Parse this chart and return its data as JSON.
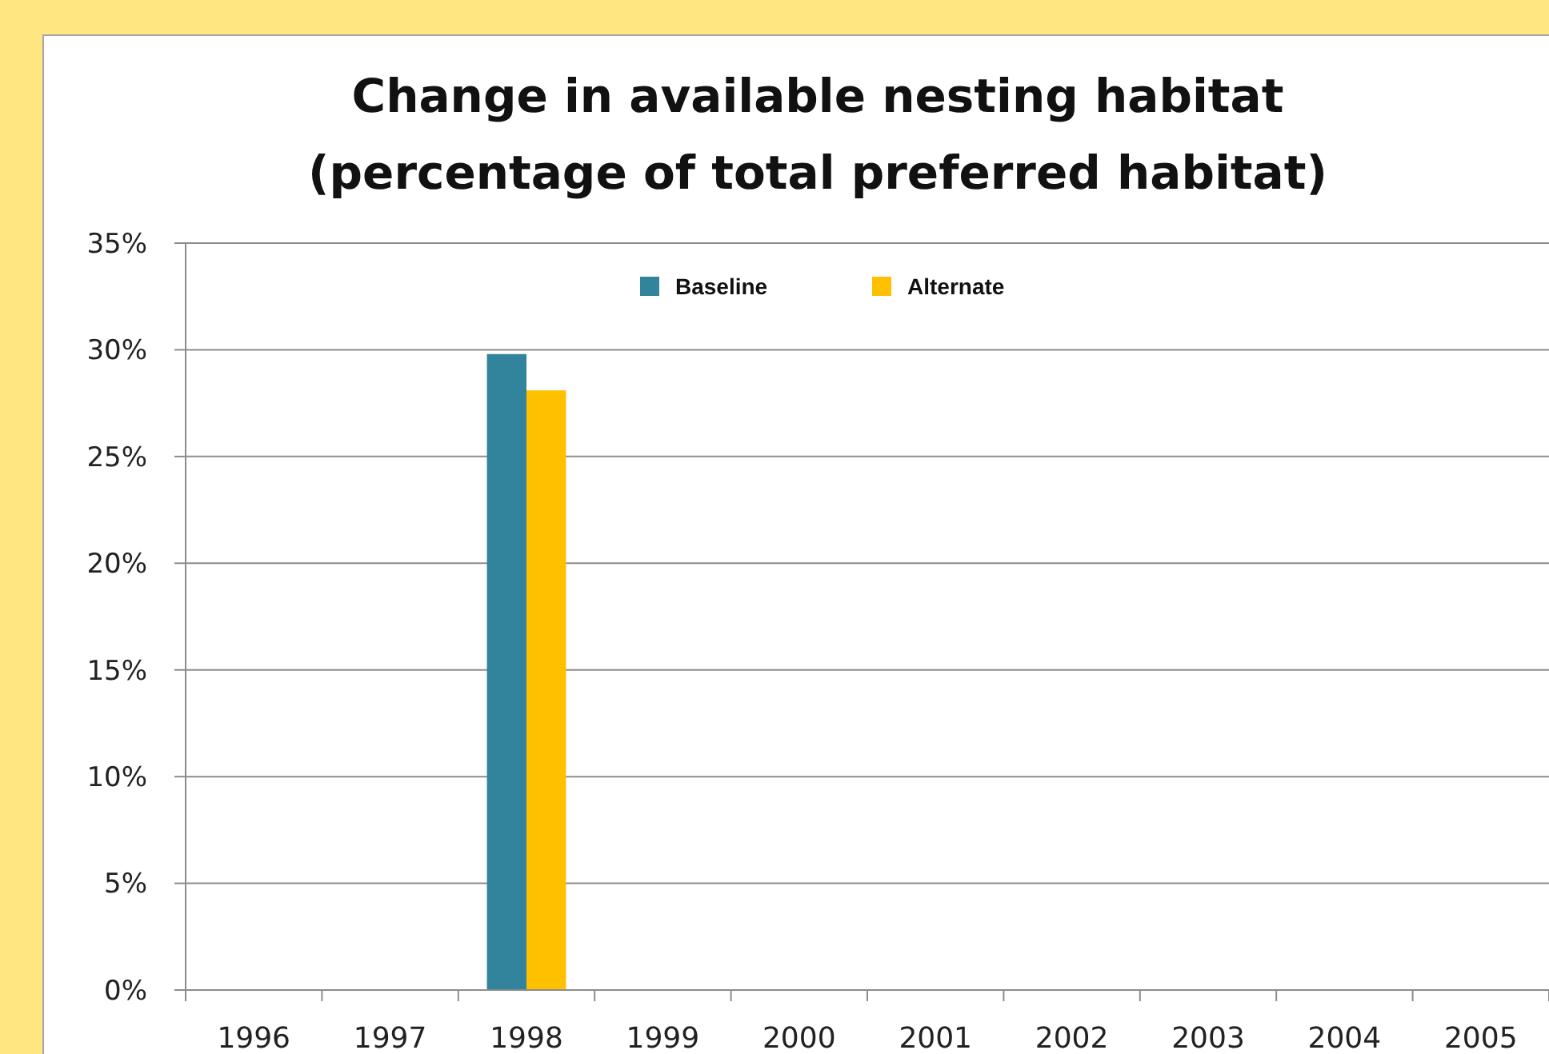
{
  "chart_data": {
    "type": "bar",
    "title": "Change in available nesting habitat",
    "subtitle": "(percentage of total preferred habitat)",
    "categories": [
      "1996",
      "1997",
      "1998",
      "1999",
      "2000",
      "2001",
      "2002",
      "2003",
      "2004",
      "2005"
    ],
    "series": [
      {
        "name": "Baseline",
        "color": "#31849b",
        "values": [
          null,
          null,
          29.8,
          null,
          null,
          null,
          null,
          null,
          null,
          null
        ]
      },
      {
        "name": "Alternate",
        "color": "#ffc000",
        "values": [
          null,
          null,
          28.1,
          null,
          null,
          null,
          null,
          null,
          null,
          null
        ]
      }
    ],
    "ylim": [
      0,
      35
    ],
    "yticks": [
      {
        "value": 0,
        "label": "0%"
      },
      {
        "value": 5,
        "label": "5%"
      },
      {
        "value": 10,
        "label": "10%"
      },
      {
        "value": 15,
        "label": "15%"
      },
      {
        "value": 20,
        "label": "20%"
      },
      {
        "value": 25,
        "label": "25%"
      },
      {
        "value": 30,
        "label": "30%"
      },
      {
        "value": 35,
        "label": "35%"
      }
    ],
    "grid": "y",
    "legend": "top"
  }
}
